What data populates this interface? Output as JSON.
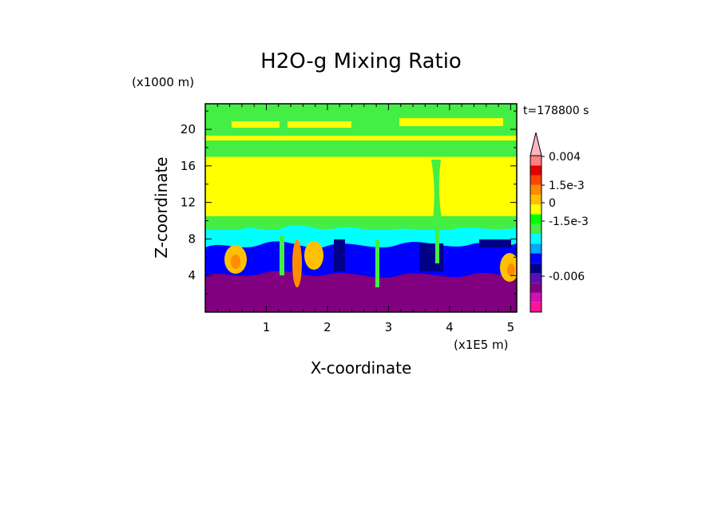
{
  "chart_data": {
    "type": "heatmap",
    "title": "H2O-g Mixing Ratio",
    "xlabel": "X-coordinate",
    "ylabel": "Z-coordinate",
    "x_unit_label": "(x1E5 m)",
    "y_unit_label": "(x1000 m)",
    "time_label": "t=178800 s",
    "xlim": [
      0,
      5.1
    ],
    "ylim": [
      0,
      22.8
    ],
    "x_ticks": [
      "1",
      "2",
      "3",
      "4",
      "5"
    ],
    "y_ticks": [
      "4",
      "8",
      "12",
      "16",
      "20"
    ],
    "colorbar": {
      "labels": [
        "0.004",
        "1.5e-3",
        "0",
        "-1.5e-3",
        "-0.006"
      ],
      "colors": [
        "#ff1493",
        "#d40fb6",
        "#800080",
        "#5a0fb4",
        "#00008b",
        "#0000ff",
        "#00aaff",
        "#00ffff",
        "#44ee44",
        "#00ff00",
        "#ffff00",
        "#ffc000",
        "#ff8c00",
        "#ff4500",
        "#e00000",
        "#ff7f7f",
        "#ffb6c1"
      ]
    },
    "bands": [
      {
        "z": [
          0.0,
          2.5
        ],
        "level": "-0.006",
        "color": "#800080"
      },
      {
        "z": [
          2.5,
          6.0
        ],
        "level": "-1.5e-3",
        "color": "#0000ff"
      },
      {
        "z": [
          6.0,
          9.0
        ],
        "level": "-1.5e-3",
        "color": "#00ffff"
      },
      {
        "z": [
          9.0,
          10.5
        ],
        "level": "0",
        "color": "#44ee44"
      },
      {
        "z": [
          10.5,
          17.0
        ],
        "level": "0",
        "color": "#ffff00"
      },
      {
        "z": [
          17.0,
          22.8
        ],
        "level": "0",
        "color": "#44ee44"
      }
    ]
  }
}
